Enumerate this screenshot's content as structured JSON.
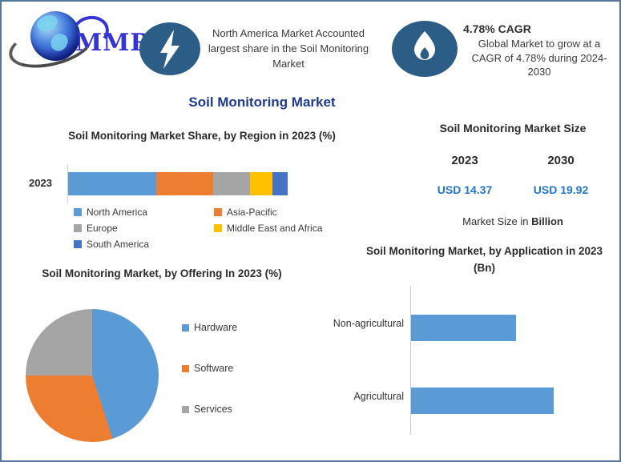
{
  "colors": {
    "border": "#55779F",
    "title_navy": "#1E3A8F",
    "icon_circle": "#2B5D87",
    "value_blue": "#2176C7",
    "logo_blue": "#3434D4"
  },
  "header": {
    "logo_text": "MMR",
    "highlight": {
      "text": "North America Market Accounted largest share in the Soil Monitoring Market"
    },
    "cagr": {
      "title": "4.78% CAGR",
      "text": "Global Market to grow at a CAGR of 4.78% during 2024-2030"
    }
  },
  "main_title": "Soil Monitoring Market",
  "market_size_panel": {
    "title": "Soil Monitoring Market Size",
    "years": [
      "2023",
      "2030"
    ],
    "values": [
      "USD 14.37",
      "USD 19.92"
    ],
    "note_prefix": "Market Size in ",
    "note_bold": "Billion"
  },
  "chart_data": [
    {
      "type": "bar",
      "subtype": "stacked-horizontal",
      "title": "Soil Monitoring Market Share, by Region in 2023 (%)",
      "categories": [
        "2023"
      ],
      "series": [
        {
          "name": "North America",
          "values": [
            40
          ],
          "color": "#5B9BD5"
        },
        {
          "name": "Asia-Pacific",
          "values": [
            26
          ],
          "color": "#ED7D31"
        },
        {
          "name": "Europe",
          "values": [
            17
          ],
          "color": "#A5A5A5"
        },
        {
          "name": "Middle East and Africa",
          "values": [
            10
          ],
          "color": "#FFC000"
        },
        {
          "name": "South America",
          "values": [
            7
          ],
          "color": "#4472C4"
        }
      ],
      "xlim": [
        0,
        100
      ],
      "legend_position": "bottom",
      "grid": false
    },
    {
      "type": "pie",
      "title": "Soil Monitoring Market, by Offering In 2023 (%)",
      "labels": [
        "Hardware",
        "Software",
        "Services"
      ],
      "values": [
        45,
        30,
        25
      ],
      "colors": [
        "#5B9BD5",
        "#ED7D31",
        "#A5A5A5"
      ],
      "start_angle_deg": 0,
      "legend_position": "right"
    },
    {
      "type": "bar",
      "subtype": "horizontal",
      "title": "Soil Monitoring Market, by Application in 2023 (Bn)",
      "categories": [
        "Non-agricultural",
        "Agricultural"
      ],
      "values": [
        6.1,
        8.3
      ],
      "color": "#5B9BD5",
      "xlim": [
        0,
        10
      ],
      "grid": false,
      "legend_position": "none"
    }
  ]
}
